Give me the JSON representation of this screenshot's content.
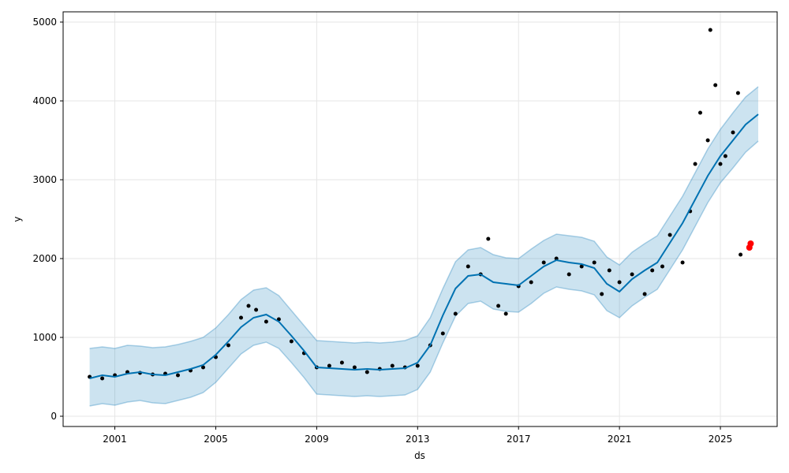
{
  "chart_data": {
    "type": "line",
    "title": "",
    "xlabel": "ds",
    "ylabel": "y",
    "xlim": [
      1998.95,
      2027.25
    ],
    "ylim": [
      -130,
      5130
    ],
    "grid": true,
    "x_ticks": [
      2001,
      2005,
      2009,
      2013,
      2017,
      2021,
      2025
    ],
    "x_tick_labels": [
      "2001",
      "2005",
      "2009",
      "2013",
      "2017",
      "2021",
      "2025"
    ],
    "y_ticks": [
      0,
      1000,
      2000,
      3000,
      4000,
      5000
    ],
    "y_tick_labels": [
      "0",
      "1000",
      "2000",
      "3000",
      "4000",
      "5000"
    ],
    "colors": {
      "forecast_line": "#0072B2",
      "uncertainty_band": "#0072B2",
      "observed_points": "#000000",
      "highlight_points": "#ff0000",
      "grid": "#e6e6e6"
    },
    "series": [
      {
        "role": "forecast",
        "x": [
          2000.0,
          2000.5,
          2001.0,
          2001.5,
          2002.0,
          2002.5,
          2003.0,
          2003.5,
          2004.0,
          2004.5,
          2005.0,
          2005.5,
          2006.0,
          2006.5,
          2007.0,
          2007.5,
          2008.0,
          2008.5,
          2009.0,
          2009.5,
          2010.0,
          2010.5,
          2011.0,
          2011.5,
          2012.0,
          2012.5,
          2013.0,
          2013.5,
          2014.0,
          2014.5,
          2015.0,
          2015.5,
          2016.0,
          2016.5,
          2017.0,
          2017.5,
          2018.0,
          2018.5,
          2019.0,
          2019.5,
          2020.0,
          2020.5,
          2021.0,
          2021.5,
          2022.0,
          2022.5,
          2023.0,
          2023.5,
          2024.0,
          2024.5,
          2025.0,
          2025.5,
          2026.0,
          2026.5
        ],
        "y": [
          480,
          520,
          500,
          540,
          560,
          530,
          520,
          560,
          600,
          650,
          780,
          950,
          1130,
          1250,
          1290,
          1200,
          1020,
          830,
          620,
          610,
          600,
          590,
          600,
          590,
          600,
          610,
          680,
          900,
          1280,
          1620,
          1780,
          1800,
          1700,
          1680,
          1660,
          1780,
          1900,
          1980,
          1950,
          1930,
          1880,
          1680,
          1580,
          1740,
          1850,
          1950,
          2200,
          2450,
          2750,
          3050,
          3300,
          3500,
          3700,
          3830
        ]
      },
      {
        "role": "uncertainty-upper",
        "x": [
          2000.0,
          2000.5,
          2001.0,
          2001.5,
          2002.0,
          2002.5,
          2003.0,
          2003.5,
          2004.0,
          2004.5,
          2005.0,
          2005.5,
          2006.0,
          2006.5,
          2007.0,
          2007.5,
          2008.0,
          2008.5,
          2009.0,
          2009.5,
          2010.0,
          2010.5,
          2011.0,
          2011.5,
          2012.0,
          2012.5,
          2013.0,
          2013.5,
          2014.0,
          2014.5,
          2015.0,
          2015.5,
          2016.0,
          2016.5,
          2017.0,
          2017.5,
          2018.0,
          2018.5,
          2019.0,
          2019.5,
          2020.0,
          2020.5,
          2021.0,
          2021.5,
          2022.0,
          2022.5,
          2023.0,
          2023.5,
          2024.0,
          2024.5,
          2025.0,
          2025.5,
          2026.0,
          2026.5
        ],
        "y": [
          860,
          880,
          860,
          900,
          890,
          870,
          880,
          910,
          950,
          1000,
          1120,
          1290,
          1480,
          1600,
          1630,
          1530,
          1340,
          1150,
          960,
          950,
          940,
          930,
          940,
          930,
          940,
          960,
          1020,
          1250,
          1620,
          1960,
          2110,
          2140,
          2050,
          2010,
          2000,
          2120,
          2230,
          2310,
          2290,
          2270,
          2220,
          2020,
          1920,
          2080,
          2190,
          2290,
          2540,
          2790,
          3090,
          3390,
          3640,
          3850,
          4050,
          4180
        ]
      },
      {
        "role": "uncertainty-lower",
        "x": [
          2000.0,
          2000.5,
          2001.0,
          2001.5,
          2002.0,
          2002.5,
          2003.0,
          2003.5,
          2004.0,
          2004.5,
          2005.0,
          2005.5,
          2006.0,
          2006.5,
          2007.0,
          2007.5,
          2008.0,
          2008.5,
          2009.0,
          2009.5,
          2010.0,
          2010.5,
          2011.0,
          2011.5,
          2012.0,
          2012.5,
          2013.0,
          2013.5,
          2014.0,
          2014.5,
          2015.0,
          2015.5,
          2016.0,
          2016.5,
          2017.0,
          2017.5,
          2018.0,
          2018.5,
          2019.0,
          2019.5,
          2020.0,
          2020.5,
          2021.0,
          2021.5,
          2022.0,
          2022.5,
          2023.0,
          2023.5,
          2024.0,
          2024.5,
          2025.0,
          2025.5,
          2026.0,
          2026.5
        ],
        "y": [
          130,
          160,
          140,
          180,
          200,
          170,
          160,
          200,
          240,
          300,
          430,
          610,
          790,
          900,
          940,
          860,
          680,
          490,
          280,
          270,
          260,
          250,
          260,
          250,
          260,
          270,
          340,
          560,
          930,
          1270,
          1430,
          1460,
          1360,
          1330,
          1320,
          1430,
          1560,
          1640,
          1610,
          1590,
          1540,
          1340,
          1250,
          1400,
          1510,
          1610,
          1860,
          2110,
          2410,
          2710,
          2960,
          3150,
          3350,
          3490
        ]
      },
      {
        "role": "observed",
        "x": [
          2000.0,
          2000.5,
          2001.0,
          2001.5,
          2002.0,
          2002.5,
          2003.0,
          2003.5,
          2004.0,
          2004.5,
          2005.0,
          2005.5,
          2006.0,
          2006.3,
          2006.6,
          2007.0,
          2007.5,
          2008.0,
          2008.5,
          2009.0,
          2009.5,
          2010.0,
          2010.5,
          2011.0,
          2011.5,
          2012.0,
          2012.5,
          2013.0,
          2013.5,
          2014.0,
          2014.5,
          2015.0,
          2015.5,
          2015.8,
          2016.2,
          2016.5,
          2017.0,
          2017.5,
          2018.0,
          2018.5,
          2019.0,
          2019.5,
          2020.0,
          2020.3,
          2020.6,
          2021.0,
          2021.5,
          2022.0,
          2022.3,
          2022.7,
          2023.0,
          2023.5,
          2023.8,
          2024.0,
          2024.2,
          2024.5,
          2024.6,
          2024.8,
          2025.0,
          2025.2,
          2025.5,
          2025.7,
          2025.8
        ],
        "y": [
          500,
          480,
          520,
          560,
          550,
          530,
          540,
          520,
          580,
          620,
          750,
          900,
          1250,
          1400,
          1350,
          1200,
          1230,
          950,
          800,
          620,
          640,
          680,
          620,
          560,
          600,
          640,
          620,
          640,
          900,
          1050,
          1300,
          1900,
          1800,
          2250,
          1400,
          1300,
          1650,
          1700,
          1950,
          2000,
          1800,
          1900,
          1950,
          1550,
          1850,
          1700,
          1800,
          1550,
          1850,
          1900,
          2300,
          1950,
          2600,
          3200,
          3850,
          3500,
          4900,
          4200,
          3200,
          3300,
          3600,
          4100,
          2050
        ]
      },
      {
        "role": "highlight",
        "x": [
          2026.15,
          2026.2
        ],
        "y": [
          2140,
          2190
        ]
      }
    ]
  }
}
